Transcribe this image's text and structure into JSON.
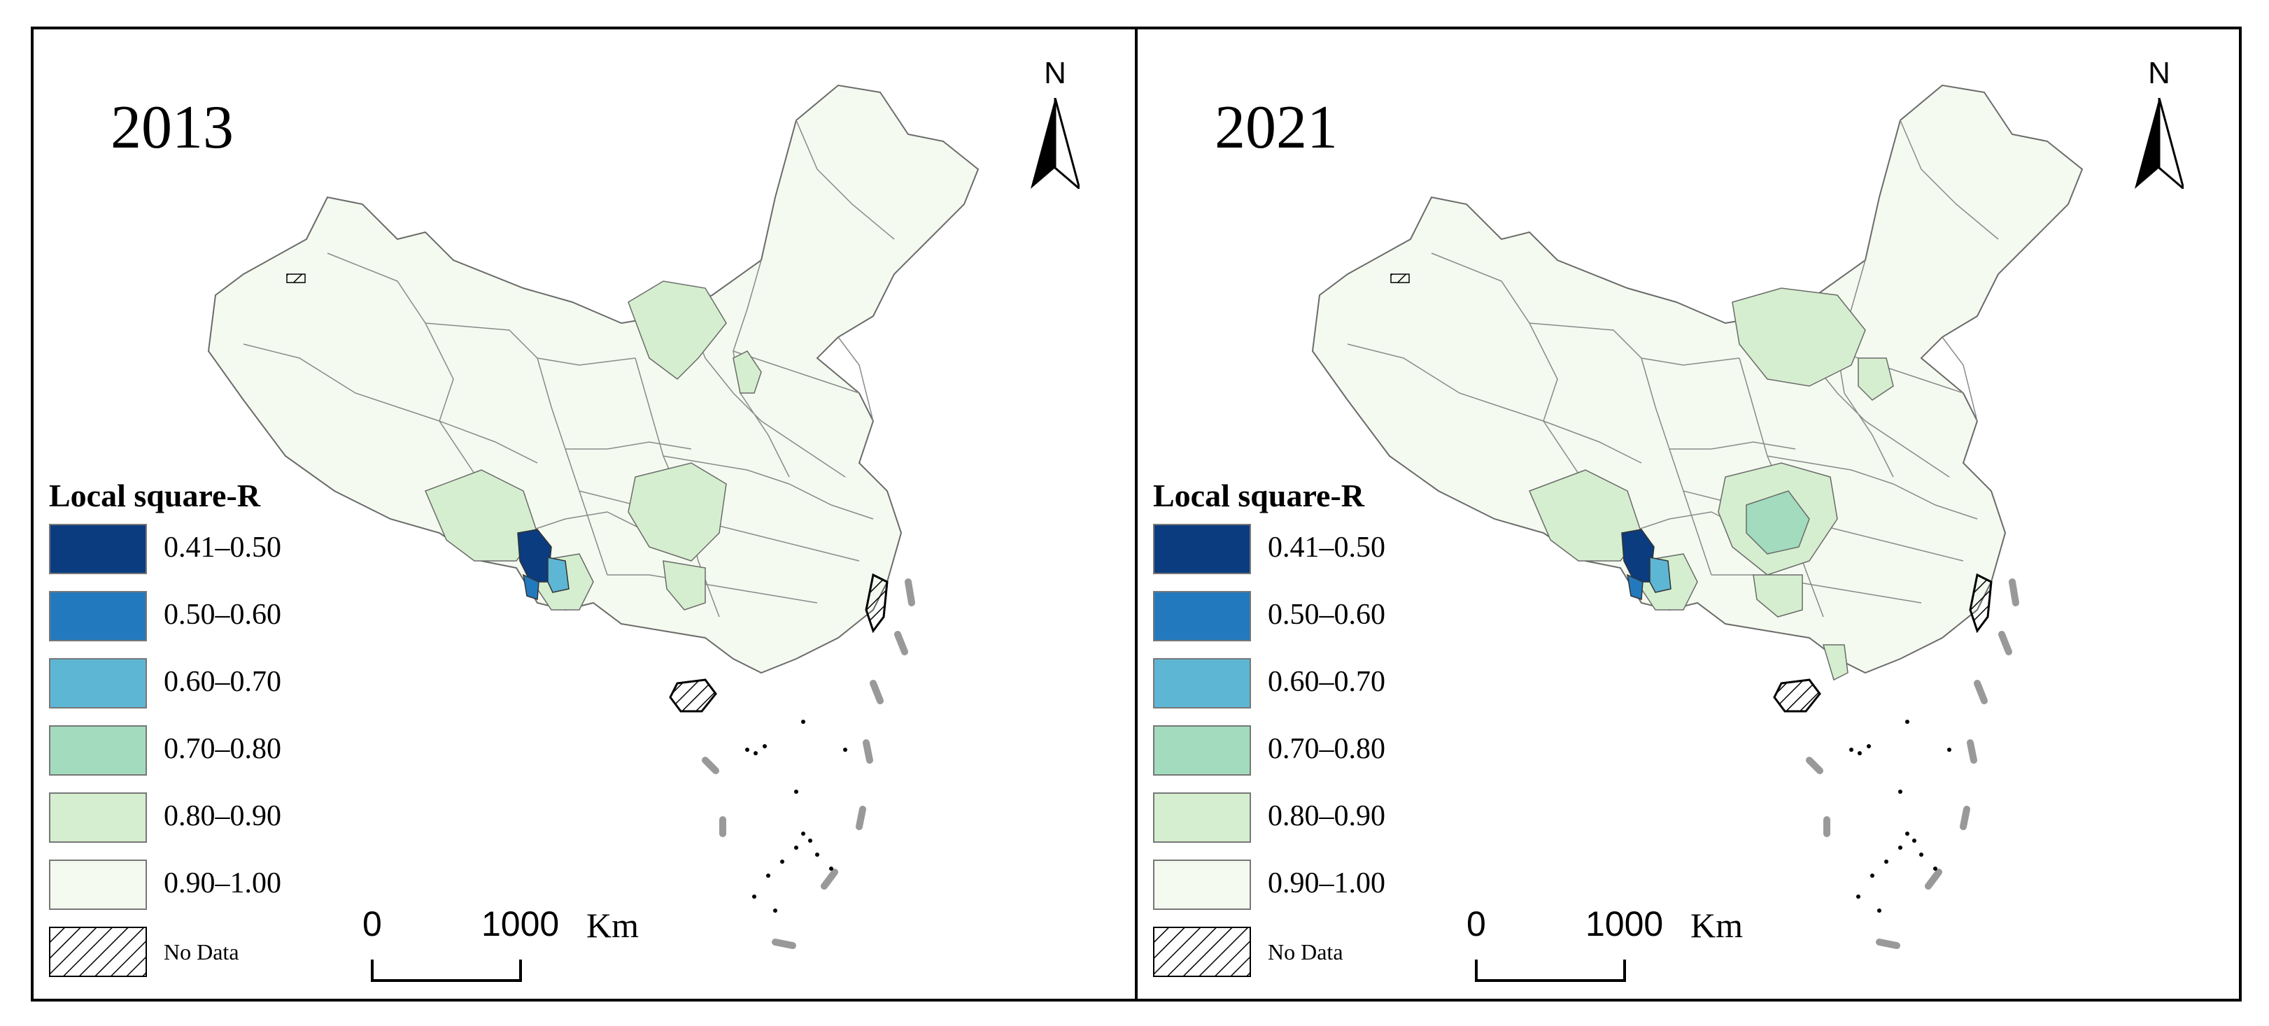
{
  "colors": {
    "class_1": "#0b3c80",
    "class_2": "#2379bd",
    "class_3": "#5db6d4",
    "class_4": "#a2dbbd",
    "class_5": "#d5eecf",
    "class_6": "#f4faef",
    "outline": "#6b6b6b",
    "frame": "#000000"
  },
  "legend": {
    "title": "Local square-R",
    "items": [
      {
        "label": "0.41–0.50",
        "color": "#0b3c80"
      },
      {
        "label": "0.50–0.60",
        "color": "#2379bd"
      },
      {
        "label": "0.60–0.70",
        "color": "#5db6d4"
      },
      {
        "label": "0.70–0.80",
        "color": "#a2dbbd"
      },
      {
        "label": "0.80–0.90",
        "color": "#d5eecf"
      },
      {
        "label": "0.90–1.00",
        "color": "#f4faef"
      }
    ],
    "nodata_label": "No Data"
  },
  "north_label": "N",
  "scale": {
    "start": "0",
    "end": "1000",
    "unit": "Km"
  },
  "panels": [
    {
      "year": "2013"
    },
    {
      "year": "2021"
    }
  ]
}
